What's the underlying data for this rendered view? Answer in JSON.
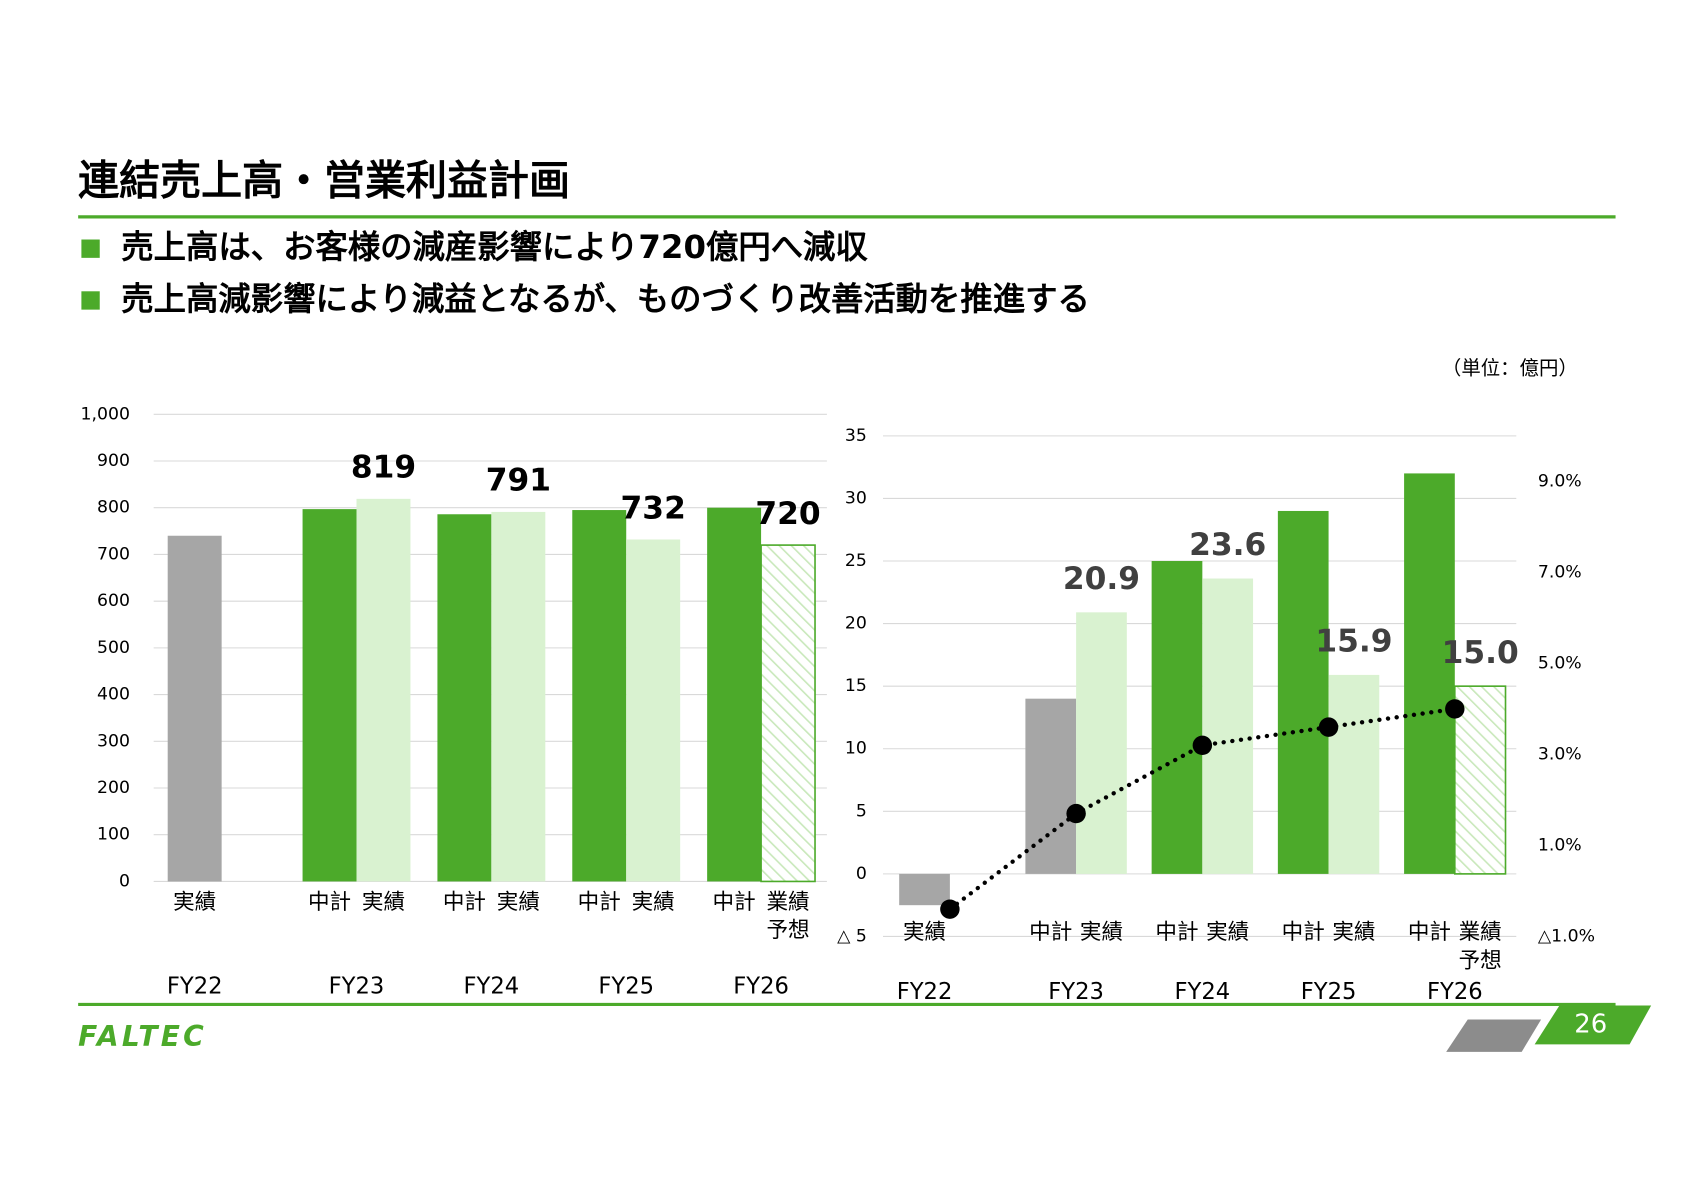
{
  "slide": {
    "title": "連結売上高・営業利益計画",
    "bullets": [
      "売上高は、お客様の減産影響により720億円へ減収",
      "売上高減影響により減益となるが、ものづくり改善活動を推進する"
    ],
    "unit": "（単位：億円）",
    "logo": "FALTEC",
    "page": "26"
  },
  "chart_data": [
    {
      "type": "bar",
      "ylim": [
        0,
        1000
      ],
      "yticks": [
        0,
        100,
        200,
        300,
        400,
        500,
        600,
        700,
        800,
        900,
        {
          "value": 1000,
          "label": "1,000"
        }
      ],
      "grid": true,
      "groups": [
        {
          "name": "FY22",
          "categories": [
            "実績"
          ],
          "values": [
            740
          ],
          "colors": [
            "#a6a6a6"
          ],
          "value_labels": [
            null
          ]
        },
        {
          "name": "FY23",
          "categories": [
            "中計",
            "実績"
          ],
          "values": [
            797,
            819
          ],
          "colors": [
            "#4caa2a",
            "#d9f2d0"
          ],
          "value_labels": [
            null,
            "819"
          ]
        },
        {
          "name": "FY24",
          "categories": [
            "中計",
            "実績"
          ],
          "values": [
            786,
            791
          ],
          "colors": [
            "#4caa2a",
            "#d9f2d0"
          ],
          "value_labels": [
            null,
            "791"
          ]
        },
        {
          "name": "FY25",
          "categories": [
            "中計",
            "実績"
          ],
          "values": [
            795,
            732
          ],
          "colors": [
            "#4caa2a",
            "#d9f2d0"
          ],
          "value_labels": [
            null,
            "732"
          ]
        },
        {
          "name": "FY26",
          "categories": [
            "中計",
            "業績予想"
          ],
          "values": [
            800,
            720
          ],
          "colors": [
            "#4caa2a",
            "hatch"
          ],
          "value_labels": [
            null,
            "720"
          ]
        }
      ]
    },
    {
      "type": "bar",
      "ylim": [
        -5,
        35
      ],
      "yticks": [
        {
          "value": -5,
          "label": "△ 5"
        },
        0,
        5,
        10,
        15,
        20,
        25,
        30,
        35
      ],
      "y2lim": [
        -1,
        10
      ],
      "y2ticks": [
        {
          "value": -1,
          "label": "△1.0%"
        },
        {
          "value": 1,
          "label": "1.0%"
        },
        {
          "value": 3,
          "label": "3.0%"
        },
        {
          "value": 5,
          "label": "5.0%"
        },
        {
          "value": 7,
          "label": "7.0%"
        },
        {
          "value": 9,
          "label": "9.0%"
        }
      ],
      "grid": true,
      "groups": [
        {
          "name": "FY22",
          "categories": [
            "実績"
          ],
          "values": [
            -2.5
          ],
          "colors": [
            "#a6a6a6"
          ],
          "value_labels": [
            null
          ]
        },
        {
          "name": "FY23",
          "categories": [
            "中計",
            "実績"
          ],
          "values": [
            14,
            20.9
          ],
          "colors": [
            "#a6a6a6",
            "#d9f2d0"
          ],
          "value_labels": [
            null,
            "20.9"
          ]
        },
        {
          "name": "FY24",
          "categories": [
            "中計",
            "実績"
          ],
          "values": [
            25,
            23.6
          ],
          "colors": [
            "#4caa2a",
            "#d9f2d0"
          ],
          "value_labels": [
            null,
            "23.6"
          ]
        },
        {
          "name": "FY25",
          "categories": [
            "中計",
            "実績"
          ],
          "values": [
            29,
            15.9
          ],
          "colors": [
            "#4caa2a",
            "#d9f2d0"
          ],
          "value_labels": [
            null,
            "15.9"
          ]
        },
        {
          "name": "FY26",
          "categories": [
            "中計",
            "業績予想"
          ],
          "values": [
            32,
            15
          ],
          "colors": [
            "#4caa2a",
            "hatch"
          ],
          "value_labels": [
            null,
            "15.0"
          ]
        }
      ],
      "line": {
        "values": [
          -0.4,
          1.7,
          3.2,
          3.6,
          4.0
        ],
        "axis": "y2",
        "color": "#000000",
        "style": "dotted"
      }
    }
  ]
}
